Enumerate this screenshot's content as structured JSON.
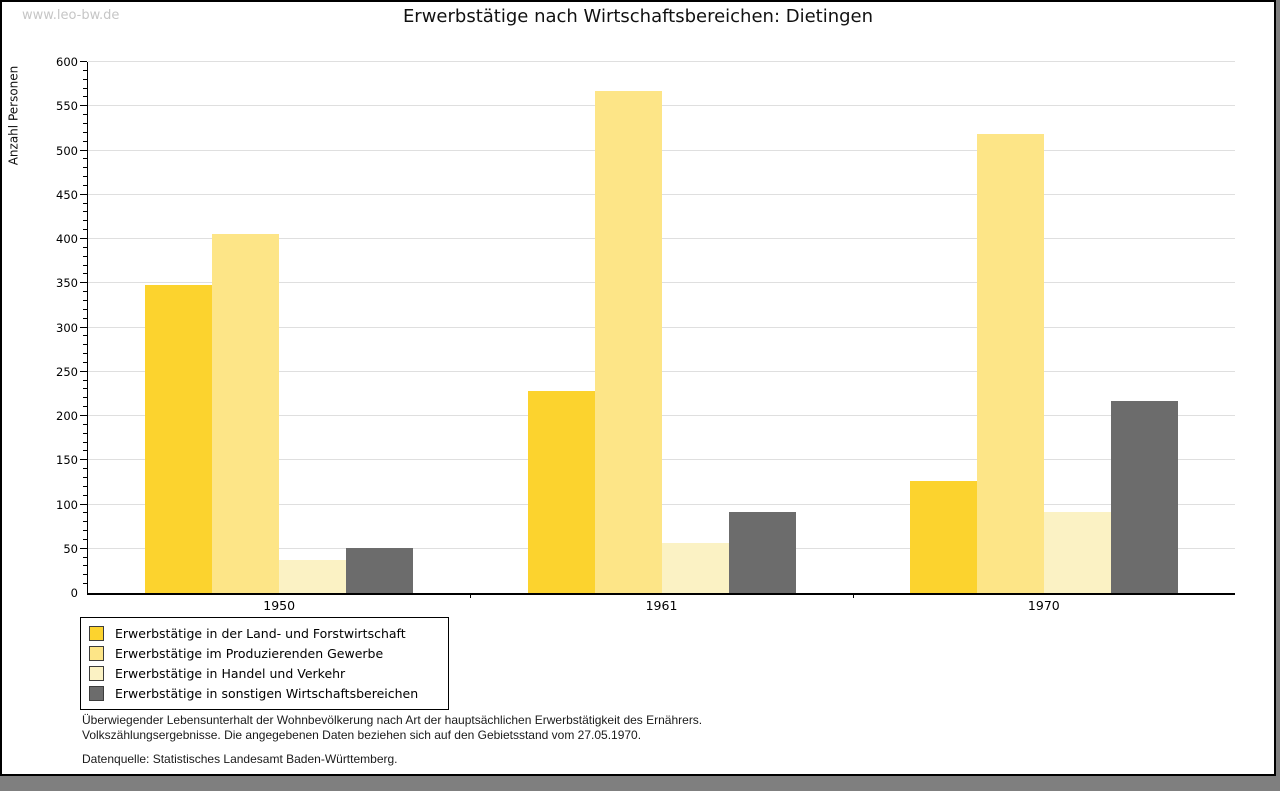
{
  "page": {
    "watermark": "www.leo-bw.de",
    "title": "Erwerbstätige nach Wirtschaftsbereichen: Dietingen",
    "footer_line1": "Überwiegender Lebensunterhalt der Wohnbevölkerung nach Art der hauptsächlichen Erwerbstätigkeit des Ernährers.",
    "footer_line2": "Volkszählungsergebnisse. Die angegebenen Daten beziehen sich auf den Gebietsstand vom 27.05.1970.",
    "footer_source": "Datenquelle: Statistisches Landesamt Baden-Württemberg."
  },
  "chart_data": {
    "type": "bar",
    "title": "Erwerbstätige nach Wirtschaftsbereichen: Dietingen",
    "xlabel": "",
    "ylabel": "Anzahl Personen",
    "categories": [
      "1950",
      "1961",
      "1970"
    ],
    "series": [
      {
        "name": "Erwerbstätige in der Land- und Forstwirtschaft",
        "color": "#fcd32e",
        "values": [
          348,
          228,
          127
        ]
      },
      {
        "name": "Erwerbstätige im Produzierenden Gewerbe",
        "color": "#fde587",
        "values": [
          406,
          567,
          519
        ]
      },
      {
        "name": "Erwerbstätige in Handel und Verkehr",
        "color": "#fbf2c4",
        "values": [
          37,
          57,
          92
        ]
      },
      {
        "name": "Erwerbstätige in sonstigen Wirtschaftsbereichen",
        "color": "#6c6c6c",
        "values": [
          51,
          92,
          217
        ]
      }
    ],
    "ylim": [
      0,
      600
    ],
    "ytick_step": 50,
    "yminor_step": 10,
    "ytick_labels": [
      "0",
      "50",
      "100",
      "150",
      "200",
      "250",
      "300",
      "350",
      "400",
      "450",
      "500",
      "550",
      "600"
    ],
    "grid": "horizontal",
    "gridline_color": "#dfdfdf",
    "legend_position": "bottom-left"
  }
}
